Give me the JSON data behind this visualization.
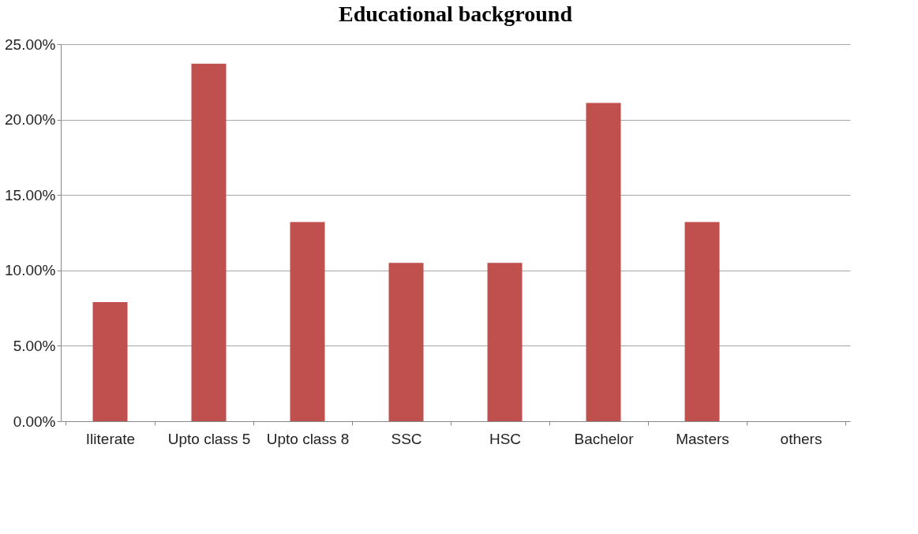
{
  "chart_data": {
    "type": "bar",
    "title": "Educational background",
    "categories": [
      "Iliterate",
      "Upto class 5",
      "Upto class 8",
      "SSC",
      "HSC",
      "Bachelor",
      "Masters",
      "others"
    ],
    "values": [
      7.9,
      23.7,
      13.2,
      10.5,
      10.5,
      21.1,
      13.2,
      0
    ],
    "color": "#c0504d",
    "ylim": [
      0,
      25
    ],
    "yticks": [
      {
        "value": 0,
        "label": "0.00%"
      },
      {
        "value": 5,
        "label": "5.00%"
      },
      {
        "value": 10,
        "label": "10.00%"
      },
      {
        "value": 15,
        "label": "15.00%"
      },
      {
        "value": 20,
        "label": "20.00%"
      },
      {
        "value": 25,
        "label": "25.00%"
      }
    ],
    "grid": "y"
  }
}
